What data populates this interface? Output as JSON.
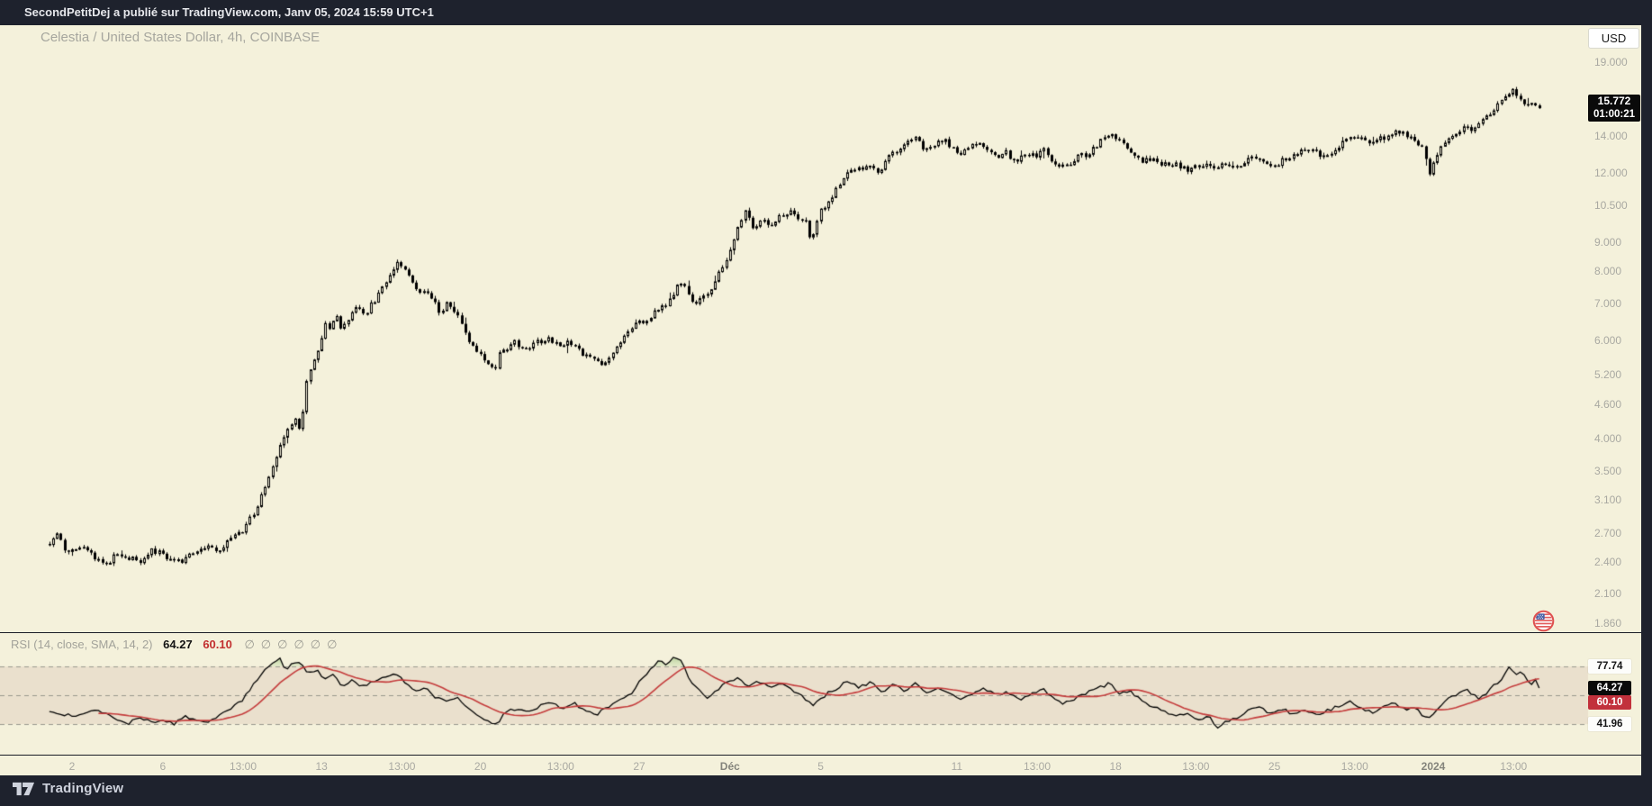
{
  "attribution_bar": {
    "text": "SecondPetitDej a publié sur TradingView.com, Janv 05, 2024 15:59 UTC+1"
  },
  "header": {
    "symbol_title": "Celestia / United States Dollar, 4h, COINBASE",
    "currency_button": "USD"
  },
  "price_scale": {
    "ticks": [
      [
        "19.000",
        19.0
      ],
      [
        "14.000",
        14.0
      ],
      [
        "12.000",
        12.0
      ],
      [
        "10.500",
        10.5
      ],
      [
        "9.000",
        9.0
      ],
      [
        "8.000",
        8.0
      ],
      [
        "7.000",
        7.0
      ],
      [
        "6.000",
        6.0
      ],
      [
        "5.200",
        5.2
      ],
      [
        "4.600",
        4.6
      ],
      [
        "4.000",
        4.0
      ],
      [
        "3.500",
        3.5
      ],
      [
        "3.100",
        3.1
      ],
      [
        "2.700",
        2.7
      ],
      [
        "2.400",
        2.4
      ],
      [
        "2.100",
        2.1
      ],
      [
        "1.860",
        1.86
      ]
    ],
    "last_price": "15.772",
    "countdown": "01:00:21"
  },
  "time_scale": {
    "labels": [
      [
        "2",
        0,
        0
      ],
      [
        "6",
        4,
        0
      ],
      [
        "13:00",
        7.54,
        0
      ],
      [
        "13",
        11,
        0
      ],
      [
        "13:00",
        14.54,
        0
      ],
      [
        "20",
        18,
        0
      ],
      [
        "13:00",
        21.54,
        0
      ],
      [
        "27",
        25,
        0
      ],
      [
        "Déc",
        29,
        1
      ],
      [
        "5",
        33,
        0
      ],
      [
        "11",
        39,
        0
      ],
      [
        "13:00",
        42.54,
        0
      ],
      [
        "18",
        46,
        0
      ],
      [
        "13:00",
        49.54,
        0
      ],
      [
        "25",
        53,
        0
      ],
      [
        "13:00",
        56.54,
        0
      ],
      [
        "2024",
        60,
        1
      ],
      [
        "13:00",
        63.54,
        0
      ]
    ]
  },
  "rsi_panel": {
    "legend_title": "RSI (14, close, SMA, 14, 2)",
    "legend_value": "64.27",
    "legend_ma_value": "60.10",
    "hidden_icon": "∅",
    "hidden_icon_count": 6,
    "upper_band": "77.74",
    "value_label": "64.27",
    "ma_label": "60.10",
    "lower_band": "41.96"
  },
  "footer": {
    "brand": "TradingView"
  },
  "colors": {
    "background": "#f4f1db",
    "frame": "#1e222d",
    "axis_text": "#a9a9a2",
    "candle": "#000000",
    "rsi_line": "#000000",
    "rsi_ma": "#c43b3b",
    "band_line": "#98988e",
    "band_fill": "rgba(165,105,105,0.12)",
    "overbought_fill_top": "rgba(88,152,60,0.60)",
    "overbought_fill_bottom": "rgba(150,200,120,0.18)",
    "red_box": "#c2313c"
  },
  "chart_data": [
    {
      "type": "candlestick",
      "title": "Celestia / United States Dollar, 4h, COINBASE",
      "symbol": "TIA/USD",
      "exchange": "COINBASE",
      "timeframe": "4h",
      "scale": "log",
      "x_unit": "days_since_2023-11-02",
      "bars_per_day": 6,
      "first_day": -1,
      "last_day": 64.67,
      "last_close": 15.772,
      "ylim": [
        1.8,
        19.8
      ],
      "price_ticks": [
        19,
        14,
        12,
        10.5,
        9,
        8,
        7,
        6,
        5.2,
        4.6,
        4,
        3.5,
        3.1,
        2.7,
        2.4,
        2.1,
        1.86
      ],
      "close_anchors": [
        [
          -1,
          2.6
        ],
        [
          -0.6,
          2.72
        ],
        [
          -0.3,
          2.5
        ],
        [
          0,
          2.52
        ],
        [
          0.5,
          2.58
        ],
        [
          1,
          2.42
        ],
        [
          1.5,
          2.38
        ],
        [
          2,
          2.5
        ],
        [
          2.5,
          2.44
        ],
        [
          3,
          2.42
        ],
        [
          3.5,
          2.52
        ],
        [
          4,
          2.48
        ],
        [
          4.5,
          2.4
        ],
        [
          5,
          2.44
        ],
        [
          5.5,
          2.5
        ],
        [
          6,
          2.56
        ],
        [
          6.5,
          2.52
        ],
        [
          6.9,
          2.62
        ],
        [
          7.5,
          2.72
        ],
        [
          8,
          2.95
        ],
        [
          8.5,
          3.25
        ],
        [
          9,
          3.72
        ],
        [
          9.5,
          4.15
        ],
        [
          9.8,
          4.4
        ],
        [
          10.05,
          4.12
        ],
        [
          10.3,
          5.0
        ],
        [
          10.7,
          5.55
        ],
        [
          11,
          6.05
        ],
        [
          11.2,
          6.55
        ],
        [
          11.4,
          6.2
        ],
        [
          11.6,
          6.75
        ],
        [
          11.8,
          6.35
        ],
        [
          12.1,
          6.55
        ],
        [
          12.5,
          6.9
        ],
        [
          12.9,
          6.7
        ],
        [
          13.3,
          7.1
        ],
        [
          13.7,
          7.5
        ],
        [
          14.1,
          8.0
        ],
        [
          14.4,
          8.35
        ],
        [
          14.7,
          8.1
        ],
        [
          15,
          7.75
        ],
        [
          15.3,
          7.3
        ],
        [
          15.6,
          7.5
        ],
        [
          15.9,
          7.1
        ],
        [
          16.2,
          6.8
        ],
        [
          16.5,
          7.0
        ],
        [
          16.8,
          6.85
        ],
        [
          17.1,
          6.6
        ],
        [
          17.5,
          6.0
        ],
        [
          17.9,
          5.75
        ],
        [
          18.25,
          5.45
        ],
        [
          18.6,
          5.3
        ],
        [
          18.85,
          5.7
        ],
        [
          19.2,
          5.85
        ],
        [
          19.5,
          6.0
        ],
        [
          19.8,
          5.8
        ],
        [
          20.2,
          5.9
        ],
        [
          20.6,
          6.0
        ],
        [
          21,
          6.1
        ],
        [
          21.4,
          5.9
        ],
        [
          21.9,
          6.0
        ],
        [
          22.4,
          5.75
        ],
        [
          22.9,
          5.6
        ],
        [
          23.3,
          5.45
        ],
        [
          23.7,
          5.65
        ],
        [
          24.1,
          5.95
        ],
        [
          24.5,
          6.2
        ],
        [
          24.9,
          6.55
        ],
        [
          25.3,
          6.45
        ],
        [
          25.7,
          6.85
        ],
        [
          26.1,
          6.95
        ],
        [
          26.5,
          7.3
        ],
        [
          26.8,
          7.7
        ],
        [
          27.1,
          7.4
        ],
        [
          27.4,
          6.95
        ],
        [
          27.7,
          7.2
        ],
        [
          28,
          7.25
        ],
        [
          28.4,
          7.8
        ],
        [
          28.8,
          8.4
        ],
        [
          29.1,
          9.0
        ],
        [
          29.4,
          9.7
        ],
        [
          29.7,
          10.4
        ],
        [
          30,
          9.6
        ],
        [
          30.4,
          9.9
        ],
        [
          30.8,
          9.7
        ],
        [
          31.2,
          10.1
        ],
        [
          31.6,
          10.3
        ],
        [
          32,
          9.9
        ],
        [
          32.3,
          10.1
        ],
        [
          32.55,
          9.0
        ],
        [
          32.9,
          10.2
        ],
        [
          33.3,
          10.7
        ],
        [
          33.7,
          11.3
        ],
        [
          34.1,
          12.0
        ],
        [
          34.4,
          12.4
        ],
        [
          34.8,
          12.2
        ],
        [
          35.2,
          12.6
        ],
        [
          35.6,
          12.0
        ],
        [
          36,
          12.9
        ],
        [
          36.4,
          13.35
        ],
        [
          36.8,
          13.6
        ],
        [
          37.2,
          13.9
        ],
        [
          37.6,
          13.3
        ],
        [
          38,
          13.6
        ],
        [
          38.4,
          13.9
        ],
        [
          38.8,
          13.3
        ],
        [
          39.2,
          13.1
        ],
        [
          39.6,
          13.4
        ],
        [
          40,
          13.6
        ],
        [
          40.4,
          13.1
        ],
        [
          40.8,
          12.9
        ],
        [
          41.2,
          13.1
        ],
        [
          41.6,
          12.6
        ],
        [
          42,
          13.1
        ],
        [
          42.4,
          12.9
        ],
        [
          42.8,
          13.35
        ],
        [
          43.2,
          12.6
        ],
        [
          43.6,
          12.4
        ],
        [
          44,
          12.6
        ],
        [
          44.4,
          12.9
        ],
        [
          44.8,
          13.1
        ],
        [
          45.2,
          13.6
        ],
        [
          45.6,
          14.2
        ],
        [
          46,
          13.9
        ],
        [
          46.4,
          13.6
        ],
        [
          46.8,
          13.1
        ],
        [
          47.2,
          12.6
        ],
        [
          47.6,
          12.9
        ],
        [
          48,
          12.4
        ],
        [
          48.4,
          12.6
        ],
        [
          48.8,
          12.4
        ],
        [
          49.2,
          12.2
        ],
        [
          49.6,
          12.4
        ],
        [
          50,
          12.6
        ],
        [
          50.4,
          12.4
        ],
        [
          50.8,
          12.6
        ],
        [
          51.2,
          12.4
        ],
        [
          51.6,
          12.6
        ],
        [
          52,
          12.85
        ],
        [
          52.4,
          12.6
        ],
        [
          52.8,
          12.4
        ],
        [
          53.2,
          12.6
        ],
        [
          53.6,
          12.85
        ],
        [
          54,
          13.1
        ],
        [
          54.4,
          13.35
        ],
        [
          54.8,
          13.1
        ],
        [
          55.2,
          12.85
        ],
        [
          55.6,
          13.1
        ],
        [
          56,
          13.6
        ],
        [
          56.4,
          14.1
        ],
        [
          56.8,
          13.85
        ],
        [
          57.2,
          13.6
        ],
        [
          57.6,
          13.85
        ],
        [
          58,
          14.1
        ],
        [
          58.4,
          14.35
        ],
        [
          58.8,
          14.1
        ],
        [
          59.2,
          13.85
        ],
        [
          59.55,
          13.3
        ],
        [
          59.85,
          11.9
        ],
        [
          60.1,
          13.0
        ],
        [
          60.5,
          13.6
        ],
        [
          60.9,
          14.1
        ],
        [
          61.3,
          14.6
        ],
        [
          61.7,
          14.3
        ],
        [
          62.1,
          14.9
        ],
        [
          62.5,
          15.5
        ],
        [
          62.9,
          16.1
        ],
        [
          63.2,
          16.6
        ],
        [
          63.5,
          17.1
        ],
        [
          63.8,
          16.5
        ],
        [
          64.1,
          15.9
        ],
        [
          64.4,
          16.3
        ],
        [
          64.67,
          15.772
        ]
      ]
    },
    {
      "type": "line",
      "name": "RSI (14, close, SMA, 14, 2)",
      "levels": {
        "upper": 77.74,
        "middle": 59.85,
        "lower": 41.96
      },
      "last_value": 64.27,
      "ma_last": 60.1,
      "anchors": [
        [
          -1,
          50
        ],
        [
          0,
          47
        ],
        [
          1,
          51
        ],
        [
          2,
          45
        ],
        [
          2.5,
          42.5
        ],
        [
          3,
          46
        ],
        [
          3.5,
          43
        ],
        [
          4,
          45
        ],
        [
          4.5,
          42
        ],
        [
          5,
          47
        ],
        [
          5.5,
          44
        ],
        [
          6,
          43
        ],
        [
          6.5,
          48
        ],
        [
          6.9,
          50
        ],
        [
          7.5,
          57
        ],
        [
          8,
          67
        ],
        [
          8.5,
          75
        ],
        [
          8.9,
          80
        ],
        [
          9.2,
          83
        ],
        [
          9.4,
          76
        ],
        [
          9.8,
          80
        ],
        [
          10.1,
          81
        ],
        [
          10.4,
          73
        ],
        [
          10.8,
          76
        ],
        [
          11.1,
          70
        ],
        [
          11.5,
          73
        ],
        [
          11.9,
          66
        ],
        [
          12.3,
          69
        ],
        [
          12.7,
          65
        ],
        [
          13.2,
          68
        ],
        [
          13.7,
          71
        ],
        [
          14.2,
          73.5
        ],
        [
          14.6,
          69
        ],
        [
          15.1,
          63
        ],
        [
          15.6,
          65
        ],
        [
          16,
          59
        ],
        [
          16.5,
          56
        ],
        [
          17,
          58
        ],
        [
          17.4,
          53
        ],
        [
          17.9,
          48
        ],
        [
          18.3,
          44
        ],
        [
          18.7,
          42
        ],
        [
          19.1,
          49
        ],
        [
          19.6,
          52
        ],
        [
          20.2,
          50
        ],
        [
          20.6,
          53
        ],
        [
          21.1,
          55
        ],
        [
          21.6,
          52
        ],
        [
          22.1,
          55
        ],
        [
          22.6,
          51
        ],
        [
          23.1,
          48
        ],
        [
          23.6,
          52
        ],
        [
          24.1,
          56
        ],
        [
          24.6,
          60
        ],
        [
          25.1,
          70
        ],
        [
          25.5,
          76
        ],
        [
          25.9,
          82
        ],
        [
          26.2,
          79
        ],
        [
          26.6,
          84
        ],
        [
          26.9,
          80
        ],
        [
          27.2,
          70
        ],
        [
          27.6,
          63
        ],
        [
          28,
          58
        ],
        [
          28.4,
          63
        ],
        [
          28.8,
          67
        ],
        [
          29.3,
          71
        ],
        [
          29.8,
          66
        ],
        [
          30.2,
          69
        ],
        [
          30.8,
          64
        ],
        [
          31.3,
          67
        ],
        [
          31.7,
          63
        ],
        [
          32.3,
          58
        ],
        [
          32.7,
          54
        ],
        [
          33.3,
          61
        ],
        [
          33.7,
          64
        ],
        [
          34.2,
          69
        ],
        [
          34.7,
          65
        ],
        [
          35.2,
          68
        ],
        [
          35.7,
          62
        ],
        [
          36.2,
          66
        ],
        [
          36.7,
          63
        ],
        [
          37.2,
          67
        ],
        [
          37.7,
          62
        ],
        [
          38.2,
          65
        ],
        [
          38.7,
          60
        ],
        [
          39.2,
          57
        ],
        [
          39.7,
          61
        ],
        [
          40.2,
          64
        ],
        [
          40.7,
          60
        ],
        [
          41.2,
          62
        ],
        [
          41.7,
          57
        ],
        [
          42.2,
          60
        ],
        [
          42.8,
          64
        ],
        [
          43.2,
          58
        ],
        [
          43.7,
          55
        ],
        [
          44.2,
          58
        ],
        [
          44.7,
          61
        ],
        [
          45.2,
          64
        ],
        [
          45.7,
          67
        ],
        [
          46.2,
          61
        ],
        [
          46.6,
          63
        ],
        [
          47.1,
          57
        ],
        [
          47.6,
          53
        ],
        [
          48.1,
          50
        ],
        [
          48.6,
          47
        ],
        [
          49.1,
          49
        ],
        [
          49.6,
          45
        ],
        [
          50.1,
          47
        ],
        [
          50.5,
          40
        ],
        [
          50.8,
          43
        ],
        [
          51.3,
          46
        ],
        [
          51.8,
          50
        ],
        [
          52.3,
          53
        ],
        [
          52.8,
          49
        ],
        [
          53.3,
          52
        ],
        [
          53.8,
          48
        ],
        [
          54.3,
          51
        ],
        [
          54.8,
          47
        ],
        [
          55.3,
          50
        ],
        [
          55.8,
          53
        ],
        [
          56.3,
          56
        ],
        [
          56.8,
          52
        ],
        [
          57.3,
          49
        ],
        [
          57.7,
          52
        ],
        [
          58.2,
          55
        ],
        [
          58.7,
          51
        ],
        [
          59.2,
          53
        ],
        [
          59.6,
          45
        ],
        [
          60,
          48
        ],
        [
          60.4,
          55
        ],
        [
          61,
          60
        ],
        [
          61.5,
          63
        ],
        [
          62,
          58
        ],
        [
          62.4,
          62
        ],
        [
          62.7,
          66
        ],
        [
          63,
          70
        ],
        [
          63.2,
          74
        ],
        [
          63.4,
          77.5
        ],
        [
          63.6,
          72
        ],
        [
          63.85,
          75
        ],
        [
          64.1,
          70
        ],
        [
          64.3,
          67
        ],
        [
          64.5,
          70
        ],
        [
          64.67,
          64.27
        ]
      ]
    }
  ]
}
